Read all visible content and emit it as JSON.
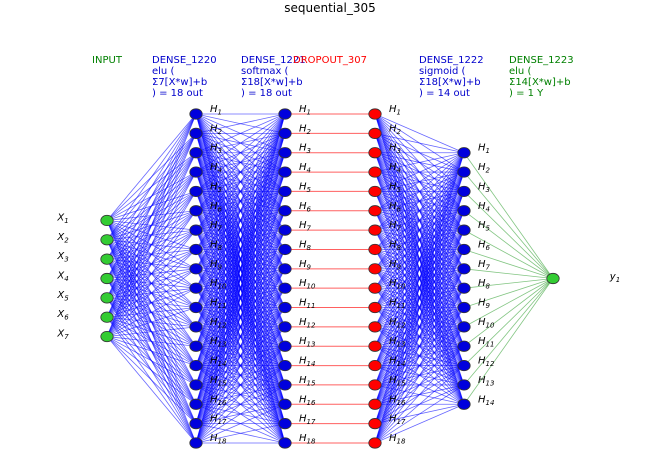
{
  "title": "sequential_305",
  "colors": {
    "input_node": "#33cc33",
    "dense_node": "#0000dd",
    "dropout_node": "#ff0000",
    "output_node": "#33cc33",
    "dense_edge": "#0000ff",
    "dropout_edge": "#ff4444",
    "output_edge": "#2e9e2e",
    "header_green": "#008000",
    "header_blue": "#0000cc",
    "header_red": "#ff0000"
  },
  "layers": [
    {
      "header": [
        "INPUT"
      ],
      "header_color": "green",
      "count": 7,
      "node_color": "input_node",
      "label_prefix": "X",
      "label_side": "left"
    },
    {
      "header": [
        "DENSE_1220",
        "elu (",
        "Σ7[X*w]+b",
        ") = 18 out"
      ],
      "header_color": "blue",
      "count": 18,
      "node_color": "dense_node",
      "label_prefix": "H",
      "label_side": "right"
    },
    {
      "header": [
        "DENSE_1221",
        "softmax (",
        "Σ18[X*w]+b",
        ") = 18 out"
      ],
      "header_color": "blue",
      "count": 18,
      "node_color": "dense_node",
      "label_prefix": "H",
      "label_side": "right"
    },
    {
      "header": [
        "DROPOUT_307"
      ],
      "header_color": "red",
      "count": 18,
      "node_color": "dropout_node",
      "label_prefix": "H",
      "label_side": "right"
    },
    {
      "header": [
        "DENSE_1222",
        "sigmoid (",
        "Σ18[X*w]+b",
        ") = 14 out"
      ],
      "header_color": "blue",
      "count": 14,
      "node_color": "dense_node",
      "label_prefix": "H",
      "label_side": "right"
    },
    {
      "header": [
        "DENSE_1223",
        "elu (",
        "Σ14[X*w]+b",
        ") = 1 Y"
      ],
      "header_color": "green",
      "count": 1,
      "node_color": "output_node",
      "label_prefix": "y",
      "label_side": "right"
    }
  ],
  "connections": [
    {
      "from": 0,
      "to": 1,
      "type": "full",
      "edge_color": "dense_edge"
    },
    {
      "from": 1,
      "to": 2,
      "type": "full",
      "edge_color": "dense_edge"
    },
    {
      "from": 2,
      "to": 3,
      "type": "one-to-one",
      "edge_color": "dropout_edge"
    },
    {
      "from": 3,
      "to": 4,
      "type": "full",
      "edge_color": "dense_edge"
    },
    {
      "from": 4,
      "to": 5,
      "type": "full",
      "edge_color": "output_edge"
    }
  ]
}
